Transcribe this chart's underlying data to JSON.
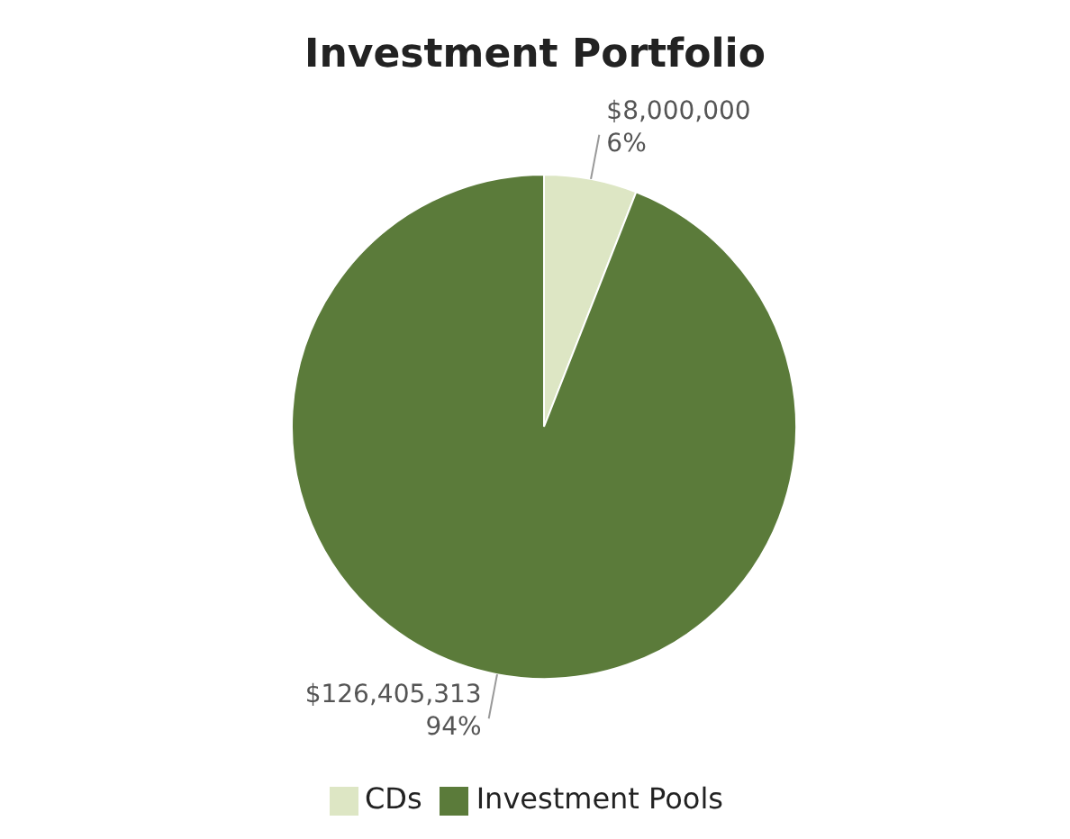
{
  "chart_data": {
    "type": "pie",
    "title": "Investment Portfolio",
    "categories": [
      "CDs",
      "Investment Pools"
    ],
    "values": [
      8000000,
      126405313
    ],
    "colors": [
      "#dde6c4",
      "#5b7b3a"
    ],
    "value_labels": [
      "$8,000,000\n6%",
      "$126,405,313\n94%"
    ],
    "legend": "bottom"
  }
}
